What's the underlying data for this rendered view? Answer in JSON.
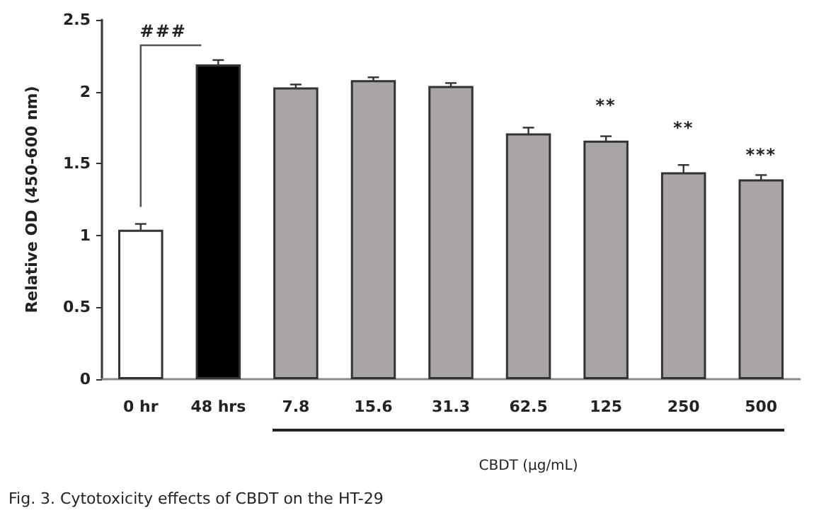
{
  "chart_data": {
    "type": "bar",
    "ylabel": "Relative OD (450-600 nm)",
    "xlabel": "CBDT (μg/mL)",
    "categories": [
      "0 hr",
      "48 hrs",
      "7.8",
      "15.6",
      "31.3",
      "62.5",
      "125",
      "250",
      "500"
    ],
    "values": [
      1.04,
      2.19,
      2.03,
      2.08,
      2.04,
      1.71,
      1.66,
      1.44,
      1.39
    ],
    "errors": [
      0.04,
      0.03,
      0.02,
      0.02,
      0.02,
      0.04,
      0.03,
      0.05,
      0.03
    ],
    "colors": [
      "#ffffff",
      "#000000",
      "#a9a5a5",
      "#a9a5a5",
      "#a9a5a5",
      "#a9a5a5",
      "#a9a5a5",
      "#a9a5a5",
      "#a9a5a5"
    ],
    "ylim": [
      0,
      2.5
    ],
    "yticks": [
      0,
      0.5,
      1,
      1.5,
      2,
      2.5
    ],
    "grid": false,
    "annotations": [
      "###",
      "**",
      "**",
      "***",
      "Fig. 3. Cytotoxicity effects of CBDT on the HT-29"
    ]
  }
}
